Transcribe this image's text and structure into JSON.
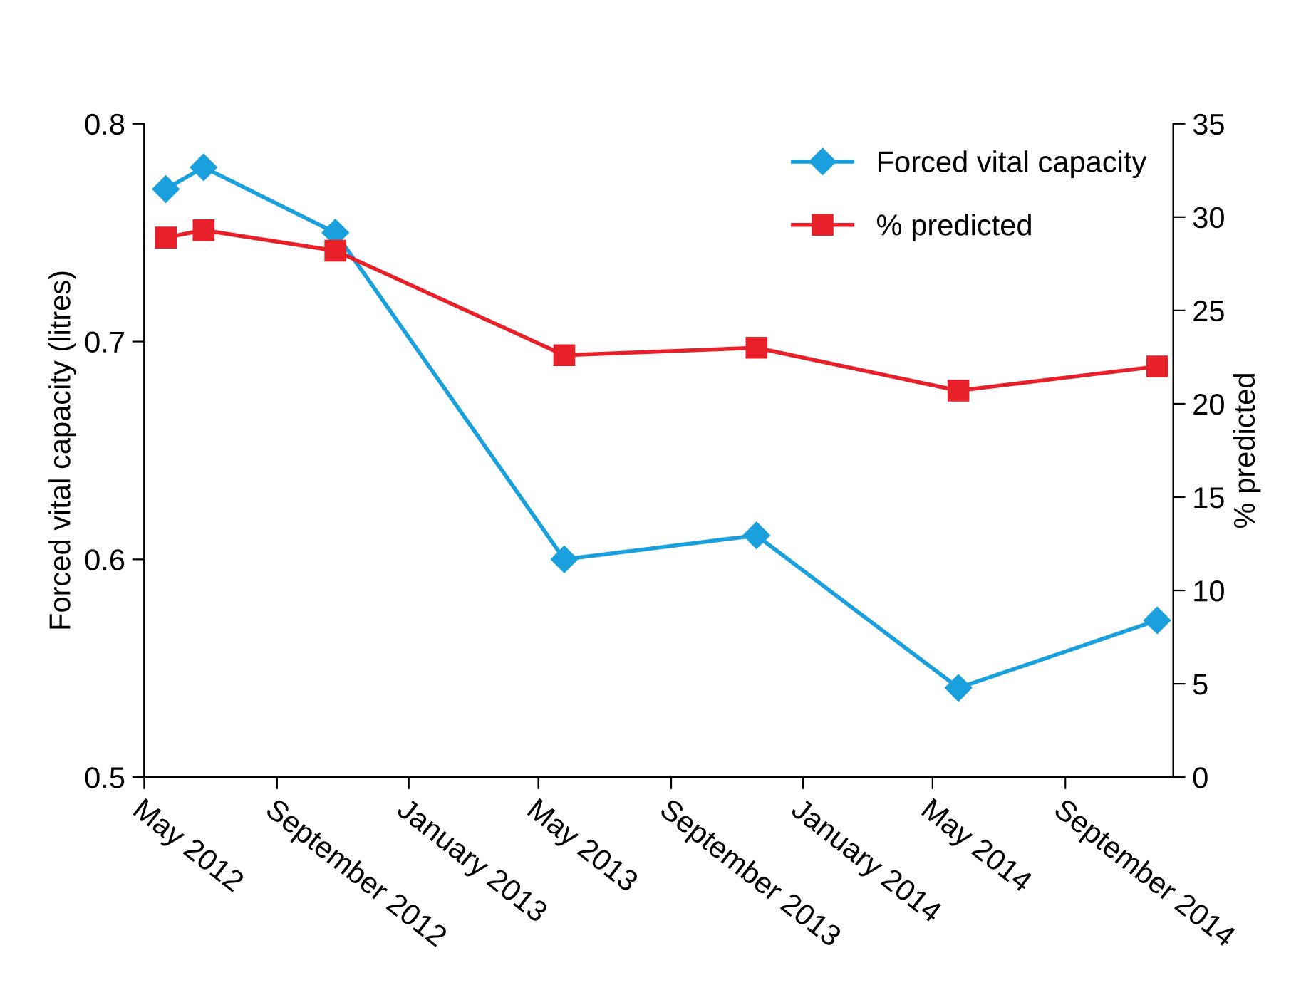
{
  "chart_data": {
    "type": "line",
    "xlabel": null,
    "ylabel": "Forced vital capacity (litres)",
    "y2label": "% predicted",
    "x": [
      "2012-05-21",
      "2012-06-25",
      "2012-10-25",
      "2013-05-25",
      "2013-11-19",
      "2014-05-25",
      "2014-11-25"
    ],
    "series": [
      {
        "name": "Forced vital capacity",
        "color": "#1aa0dc",
        "marker": "diamond",
        "values": [
          0.77,
          0.78,
          0.75,
          0.6,
          0.611,
          0.541,
          0.572
        ]
      },
      {
        "name": "% predicted",
        "color": "#e8202a",
        "marker": "square",
        "axis": "y2",
        "values": [
          28.9,
          29.3,
          28.2,
          22.6,
          23.0,
          20.7,
          22.0
        ]
      }
    ],
    "xlim": [
      "2012-05-01",
      "2014-12-10"
    ],
    "xticks": [
      {
        "value": "2012-05-01",
        "label": "May 2012"
      },
      {
        "value": "2012-09-01",
        "label": "September 2012"
      },
      {
        "value": "2013-01-01",
        "label": "January 2013"
      },
      {
        "value": "2013-05-01",
        "label": "May 2013"
      },
      {
        "value": "2013-09-01",
        "label": "September 2013"
      },
      {
        "value": "2014-01-01",
        "label": "January 2014"
      },
      {
        "value": "2014-05-01",
        "label": "May 2014"
      },
      {
        "value": "2014-09-01",
        "label": "September 2014"
      }
    ],
    "ylim": [
      0.5,
      0.8
    ],
    "yticks": [
      0.5,
      0.6,
      0.7,
      0.8
    ],
    "y2lim": [
      0,
      35
    ],
    "y2ticks": [
      0,
      5,
      10,
      15,
      20,
      25,
      30,
      35
    ],
    "legend": "top right",
    "grid": false
  }
}
